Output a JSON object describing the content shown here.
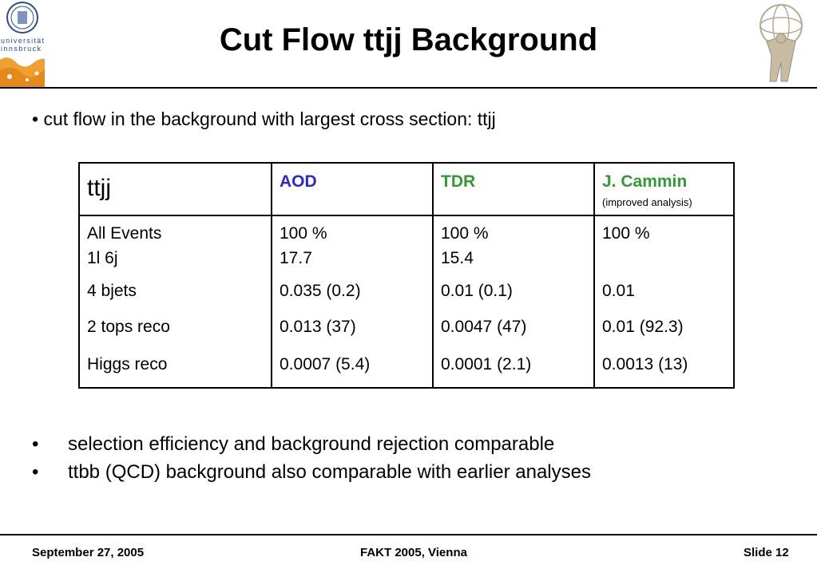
{
  "title": "Cut Flow ttjj Background",
  "logo_left": {
    "text_line1": "universität",
    "text_line2": "innsbruck"
  },
  "intro_bullet": "• cut flow in the background with largest cross section: ttjj",
  "table": {
    "headers": [
      "ttjj",
      "AOD",
      "TDR",
      "J. Cammin"
    ],
    "header_sub": "(improved analysis)",
    "rows": [
      [
        "All Events",
        "100 %",
        "100 %",
        "100 %"
      ],
      [
        "1l 6j",
        "17.7",
        "15.4",
        ""
      ],
      [
        "4 bjets",
        "0.035 (0.2)",
        "0.01 (0.1)",
        "0.01"
      ],
      [
        "2 tops reco",
        "0.013 (37)",
        "0.0047 (47)",
        "0.01 (92.3)"
      ],
      [
        "Higgs reco",
        "0.0007 (5.4)",
        "0.0001 (2.1)",
        "0.0013 (13)"
      ]
    ]
  },
  "bullets": [
    "selection efficiency and background rejection comparable",
    "ttbb (QCD) background also comparable with earlier analyses"
  ],
  "bullet_symbol": "•",
  "footer": {
    "left": "September 27, 2005",
    "center": "FAKT 2005, Vienna",
    "right": "Slide 12"
  },
  "colors": {
    "aod": "#2a2ad0",
    "tdr": "#339933",
    "cammin": "#339933"
  }
}
